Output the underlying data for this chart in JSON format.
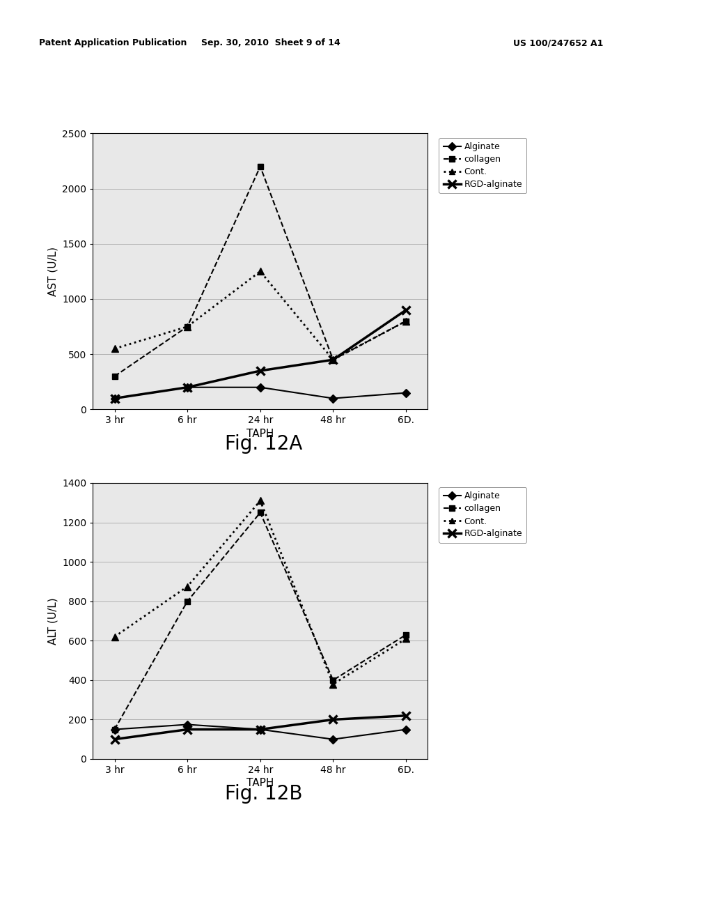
{
  "x_labels": [
    "3 hr",
    "6 hr",
    "24 hr",
    "48 hr",
    "6D."
  ],
  "x_positions": [
    0,
    1,
    2,
    3,
    4
  ],
  "ast": {
    "ylabel": "AST (U/L)",
    "ylim": [
      0,
      2500
    ],
    "yticks": [
      0,
      500,
      1000,
      1500,
      2000,
      2500
    ],
    "alginate": [
      100,
      200,
      200,
      100,
      150
    ],
    "collagen": [
      300,
      750,
      2200,
      450,
      800
    ],
    "cont": [
      550,
      750,
      1250,
      450,
      800
    ],
    "rgd_alginate": [
      100,
      200,
      350,
      450,
      900
    ],
    "fig_label": "Fig. 12A"
  },
  "alt": {
    "ylabel": "ALT (U/L)",
    "ylim": [
      0,
      1400
    ],
    "yticks": [
      0,
      200,
      400,
      600,
      800,
      1000,
      1200,
      1400
    ],
    "alginate": [
      150,
      175,
      150,
      100,
      150
    ],
    "collagen": [
      150,
      800,
      1250,
      400,
      630
    ],
    "cont": [
      620,
      875,
      1310,
      380,
      610
    ],
    "rgd_alginate": [
      100,
      150,
      150,
      200,
      220
    ],
    "fig_label": "Fig. 12B"
  },
  "xlabel": "TAPH",
  "legend_labels": [
    "Alginate",
    "collagen",
    "Cont.",
    "RGD-alginate"
  ],
  "header_left": "Patent Application Publication",
  "header_mid": "Sep. 30, 2010  Sheet 9 of 14",
  "header_right": "US 100/247652 A1",
  "bg_color": "#ffffff"
}
